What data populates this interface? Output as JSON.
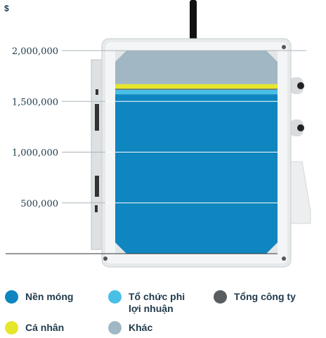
{
  "chart_data": {
    "type": "bar",
    "unit_label": "$",
    "y_ticks": [
      "2,000,000",
      "1,500,000",
      "1,000,000",
      "500,000"
    ],
    "y_tick_values": [
      2000000,
      1500000,
      1000000,
      500000
    ],
    "ylim": [
      0,
      2000000
    ],
    "series": [
      {
        "name": "Nền móng",
        "color": "#0f86bf",
        "value": 1570000
      },
      {
        "name": "Tổ chức phi lợi nhuận",
        "color": "#49bfe6",
        "value": 45000
      },
      {
        "name": "Tổng công ty",
        "color": "#5a5d60",
        "value": 10000
      },
      {
        "name": "Cá nhân",
        "color": "#e6e62a",
        "value": 45000
      },
      {
        "name": "Khác",
        "color": "#a1b7c3",
        "value": 330000
      }
    ],
    "stack_order": [
      "Nền móng",
      "Tổ chức phi lợi nhuận",
      "Tổng công ty",
      "Cá nhân",
      "Khác"
    ]
  },
  "legend": [
    {
      "label_lines": [
        "Nền móng"
      ],
      "color": "#0f86bf"
    },
    {
      "label_lines": [
        "Tổ chức phi",
        "lợi nhuận"
      ],
      "color": "#49bfe6"
    },
    {
      "label_lines": [
        "Tổng công ty"
      ],
      "color": "#5a5d60"
    },
    {
      "label_lines": [
        "Cá nhân"
      ],
      "color": "#e6e62a"
    },
    {
      "label_lines": [
        "Khác"
      ],
      "color": "#a1b7c3"
    }
  ],
  "pictogram": {
    "name": "electrical-enclosure-box-icon"
  }
}
